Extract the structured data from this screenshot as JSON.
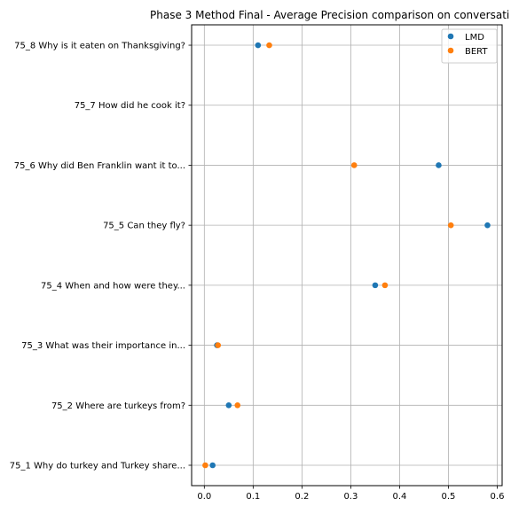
{
  "chart_data": {
    "type": "scatter",
    "title": "Phase 3 Method Final - Average Precision comparison on conversati",
    "xlabel": "",
    "ylabel": "",
    "xlim": [
      -0.026,
      0.61
    ],
    "xticks": [
      0.0,
      0.1,
      0.2,
      0.3,
      0.4,
      0.5,
      0.6
    ],
    "xtick_labels": [
      "0.0",
      "0.1",
      "0.2",
      "0.3",
      "0.4",
      "0.5",
      "0.6"
    ],
    "categories": [
      "75_1 Why do turkey and Turkey share...",
      "75_2 Where are turkeys from?",
      "75_3 What was their importance in...",
      "75_4 When and how were they...",
      "75_5 Can they fly?",
      "75_6 Why did Ben Franklin want it to...",
      "75_7 How did he cook it?",
      "75_8 Why is it eaten on Thanksgiving?"
    ],
    "series": [
      {
        "name": "LMD",
        "color": "#1f77b4",
        "values": [
          0.017,
          0.05,
          0.026,
          0.35,
          0.58,
          0.48,
          null,
          0.11
        ]
      },
      {
        "name": "BERT",
        "color": "#ff7f0e",
        "values": [
          0.002,
          0.068,
          0.028,
          0.37,
          0.505,
          0.307,
          null,
          0.133
        ]
      }
    ],
    "grid": true,
    "legend_position": "top-right"
  }
}
